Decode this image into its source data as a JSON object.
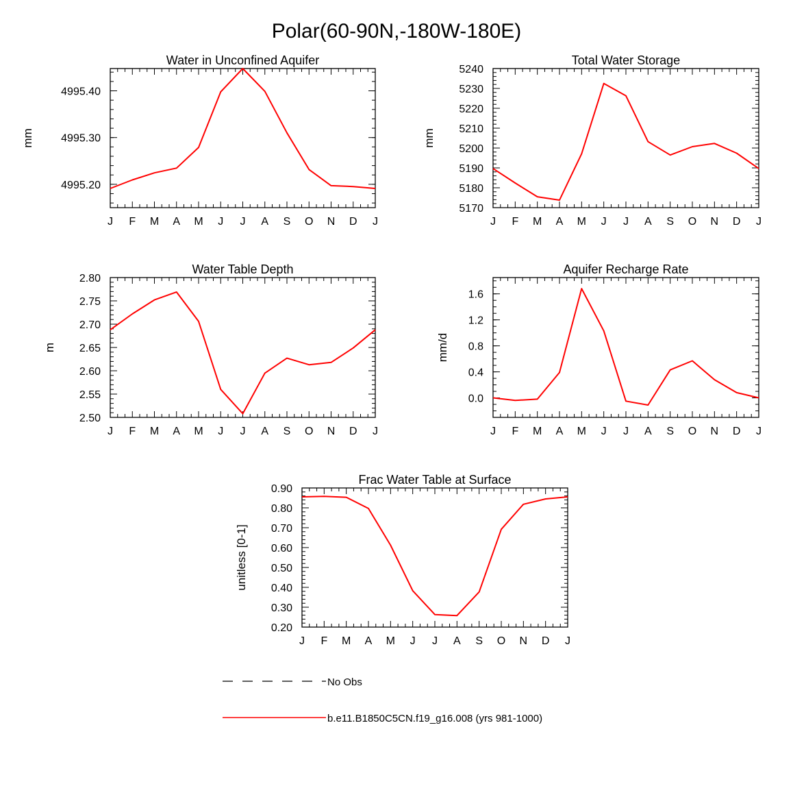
{
  "figure": {
    "title": "Polar(60-90N,-180W-180E)",
    "line_color": "#ff0000",
    "obs_line_color": "#000000",
    "x_ticks": [
      "J",
      "F",
      "M",
      "A",
      "M",
      "J",
      "J",
      "A",
      "S",
      "O",
      "N",
      "D",
      "J"
    ]
  },
  "legend": {
    "obs_label": "No Obs",
    "model_label": "b.e11.B1850C5CN.f19_g16.008 (yrs 981-1000)"
  },
  "chart_data": [
    {
      "type": "line",
      "title": "Water in Unconfined Aquifer",
      "ylabel": "mm",
      "xlabel": "",
      "categories": [
        "J",
        "F",
        "M",
        "A",
        "M",
        "J",
        "J",
        "A",
        "S",
        "O",
        "N",
        "D",
        "J"
      ],
      "ylim": [
        4995.15,
        4995.4477
      ],
      "yticks": [
        4995.2,
        4995.3,
        4995.4
      ],
      "ytick_labels": [
        "4995.20",
        "4995.30",
        "4995.40"
      ],
      "yminor": 0.02,
      "series": [
        {
          "name": "b.e11.B1850C5CN.f19_g16.008 (yrs 981-1000)",
          "values": [
            4995.1911,
            4995.2094,
            4995.2245,
            4995.2346,
            4995.2789,
            4995.3979,
            4995.4477,
            4995.3988,
            4995.3102,
            4995.2315,
            4995.1971,
            4995.1951,
            4995.1911
          ]
        }
      ]
    },
    {
      "type": "line",
      "title": "Total Water Storage",
      "ylabel": "mm",
      "xlabel": "",
      "categories": [
        "J",
        "F",
        "M",
        "A",
        "M",
        "J",
        "J",
        "A",
        "S",
        "O",
        "N",
        "D",
        "J"
      ],
      "ylim": [
        5170,
        5240
      ],
      "yticks": [
        5170,
        5180,
        5190,
        5200,
        5210,
        5220,
        5230,
        5240
      ],
      "ytick_labels": [
        "5170",
        "5180",
        "5190",
        "5200",
        "5210",
        "5220",
        "5230",
        "5240"
      ],
      "yminor": 2,
      "series": [
        {
          "name": "b.e11.B1850C5CN.f19_g16.008 (yrs 981-1000)",
          "values": [
            5189.7,
            5182.4,
            5175.5,
            5173.8,
            5197.1,
            5232.5,
            5226.3,
            5203.2,
            5196.5,
            5200.7,
            5202.3,
            5197.4,
            5189.7
          ]
        }
      ]
    },
    {
      "type": "line",
      "title": "Water Table Depth",
      "ylabel": "m",
      "xlabel": "",
      "categories": [
        "J",
        "F",
        "M",
        "A",
        "M",
        "J",
        "J",
        "A",
        "S",
        "O",
        "N",
        "D",
        "J"
      ],
      "ylim": [
        2.5,
        2.8
      ],
      "yticks": [
        2.5,
        2.55,
        2.6,
        2.65,
        2.7,
        2.75,
        2.8
      ],
      "ytick_labels": [
        "2.50",
        "2.55",
        "2.60",
        "2.65",
        "2.70",
        "2.75",
        "2.80"
      ],
      "yminor": 0.01,
      "series": [
        {
          "name": "b.e11.B1850C5CN.f19_g16.008 (yrs 981-1000)",
          "values": [
            2.688,
            2.722,
            2.752,
            2.769,
            2.706,
            2.56,
            2.508,
            2.595,
            2.627,
            2.613,
            2.618,
            2.649,
            2.688
          ]
        }
      ]
    },
    {
      "type": "line",
      "title": "Aquifer Recharge Rate",
      "ylabel": "mm/d",
      "xlabel": "",
      "categories": [
        "J",
        "F",
        "M",
        "A",
        "M",
        "J",
        "J",
        "A",
        "S",
        "O",
        "N",
        "D",
        "J"
      ],
      "ylim": [
        -0.3,
        1.85
      ],
      "yticks": [
        0.0,
        0.4,
        0.8,
        1.2,
        1.6
      ],
      "ytick_labels": [
        "0.0",
        "0.4",
        "0.8",
        "1.2",
        "1.6"
      ],
      "yminor": 0.1,
      "series": [
        {
          "name": "b.e11.B1850C5CN.f19_g16.008 (yrs 981-1000)",
          "values": [
            0.0,
            -0.04,
            -0.02,
            0.39,
            1.68,
            1.03,
            -0.05,
            -0.11,
            0.43,
            0.57,
            0.28,
            0.08,
            0.0
          ]
        }
      ]
    },
    {
      "type": "line",
      "title": "Frac Water Table at Surface",
      "ylabel": "unitless [0-1]",
      "xlabel": "",
      "categories": [
        "J",
        "F",
        "M",
        "A",
        "M",
        "J",
        "J",
        "A",
        "S",
        "O",
        "N",
        "D",
        "J"
      ],
      "ylim": [
        0.2,
        0.9
      ],
      "yticks": [
        0.2,
        0.3,
        0.4,
        0.5,
        0.6,
        0.7,
        0.8,
        0.9
      ],
      "ytick_labels": [
        "0.20",
        "0.30",
        "0.40",
        "0.50",
        "0.60",
        "0.70",
        "0.80",
        "0.90"
      ],
      "yminor": 0.02,
      "series": [
        {
          "name": "b.e11.B1850C5CN.f19_g16.008 (yrs 981-1000)",
          "values": [
            0.855,
            0.858,
            0.853,
            0.797,
            0.612,
            0.383,
            0.263,
            0.258,
            0.377,
            0.692,
            0.818,
            0.845,
            0.855
          ]
        }
      ]
    }
  ]
}
